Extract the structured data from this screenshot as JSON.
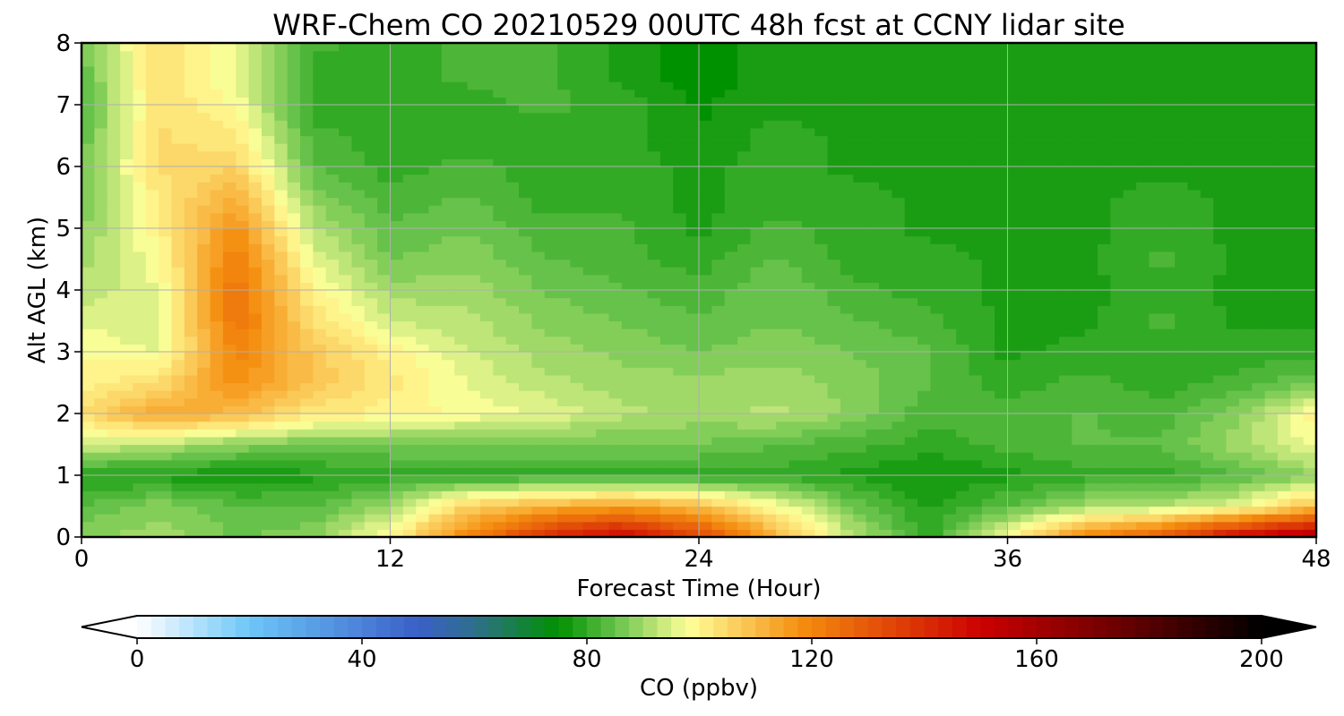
{
  "chart_data": {
    "type": "heatmap",
    "title": "WRF-Chem CO  20210529 00UTC 48h fcst at CCNY lidar site",
    "xlabel": "Forecast Time (Hour)",
    "ylabel": "Alt AGL (km)",
    "xlim": [
      0,
      48
    ],
    "ylim": [
      0,
      8
    ],
    "xticks": [
      "0",
      "12",
      "24",
      "36",
      "48"
    ],
    "yticks": [
      "0",
      "1",
      "2",
      "3",
      "4",
      "5",
      "6",
      "7",
      "8"
    ],
    "grid": true,
    "x": [
      0,
      3,
      6,
      9,
      12,
      15,
      18,
      21,
      24,
      27,
      30,
      33,
      36,
      39,
      42,
      45,
      48
    ],
    "y": [
      0,
      0.5,
      1,
      1.5,
      2,
      2.5,
      3,
      3.5,
      4,
      4.5,
      5,
      5.5,
      6,
      6.5,
      7,
      7.5,
      8
    ],
    "z": [
      [
        88,
        90,
        86,
        88,
        100,
        120,
        140,
        150,
        135,
        112,
        92,
        80,
        98,
        120,
        130,
        150,
        160
      ],
      [
        84,
        88,
        84,
        84,
        90,
        106,
        112,
        115,
        110,
        98,
        86,
        78,
        84,
        90,
        92,
        96,
        110
      ],
      [
        78,
        78,
        76,
        78,
        80,
        80,
        80,
        80,
        80,
        80,
        78,
        76,
        78,
        80,
        80,
        84,
        88
      ],
      [
        94,
        92,
        88,
        86,
        86,
        86,
        86,
        86,
        86,
        84,
        82,
        80,
        82,
        84,
        84,
        90,
        98
      ],
      [
        104,
        114,
        110,
        102,
        100,
        98,
        96,
        92,
        90,
        92,
        88,
        82,
        82,
        84,
        82,
        88,
        100
      ],
      [
        100,
        104,
        118,
        108,
        102,
        96,
        92,
        90,
        90,
        90,
        88,
        84,
        80,
        82,
        80,
        82,
        86
      ],
      [
        98,
        96,
        120,
        108,
        100,
        94,
        90,
        88,
        86,
        88,
        86,
        84,
        78,
        80,
        80,
        80,
        80
      ],
      [
        96,
        94,
        124,
        104,
        94,
        92,
        88,
        86,
        84,
        86,
        84,
        82,
        78,
        78,
        82,
        78,
        78
      ],
      [
        92,
        96,
        124,
        100,
        90,
        90,
        86,
        84,
        82,
        86,
        82,
        80,
        78,
        78,
        80,
        78,
        78
      ],
      [
        90,
        98,
        122,
        96,
        86,
        88,
        84,
        82,
        80,
        84,
        80,
        80,
        78,
        78,
        82,
        78,
        78
      ],
      [
        88,
        100,
        118,
        92,
        84,
        86,
        82,
        82,
        78,
        82,
        80,
        78,
        78,
        78,
        80,
        78,
        78
      ],
      [
        86,
        102,
        112,
        88,
        82,
        84,
        80,
        80,
        78,
        80,
        80,
        78,
        78,
        78,
        80,
        78,
        78
      ],
      [
        86,
        104,
        106,
        84,
        80,
        82,
        80,
        80,
        78,
        80,
        78,
        78,
        78,
        78,
        78,
        78,
        78
      ],
      [
        84,
        104,
        102,
        82,
        80,
        80,
        80,
        80,
        76,
        80,
        78,
        78,
        78,
        78,
        78,
        78,
        78
      ],
      [
        82,
        104,
        98,
        80,
        80,
        80,
        82,
        80,
        76,
        78,
        78,
        78,
        78,
        78,
        78,
        78,
        78
      ],
      [
        84,
        104,
        96,
        80,
        80,
        82,
        82,
        78,
        74,
        78,
        78,
        78,
        78,
        78,
        78,
        78,
        78
      ],
      [
        86,
        104,
        96,
        82,
        80,
        82,
        82,
        78,
        74,
        78,
        78,
        78,
        78,
        78,
        78,
        78,
        78
      ]
    ],
    "colorbar": {
      "label": "CO  (ppbv)",
      "min": 0,
      "max": 200,
      "ticks": [
        "0",
        "40",
        "80",
        "120",
        "160",
        "200"
      ],
      "extend": "both",
      "colors": [
        {
          "v": 0,
          "c": "#ffffff"
        },
        {
          "v": 20,
          "c": "#6cc6f8"
        },
        {
          "v": 50,
          "c": "#3a5fc8"
        },
        {
          "v": 60,
          "c": "#2e6f8c"
        },
        {
          "v": 75,
          "c": "#009100"
        },
        {
          "v": 85,
          "c": "#66c24a"
        },
        {
          "v": 98,
          "c": "#ffff99"
        },
        {
          "v": 118,
          "c": "#f58e0f"
        },
        {
          "v": 150,
          "c": "#cc0000"
        },
        {
          "v": 180,
          "c": "#550000"
        },
        {
          "v": 200,
          "c": "#000000"
        }
      ]
    }
  }
}
